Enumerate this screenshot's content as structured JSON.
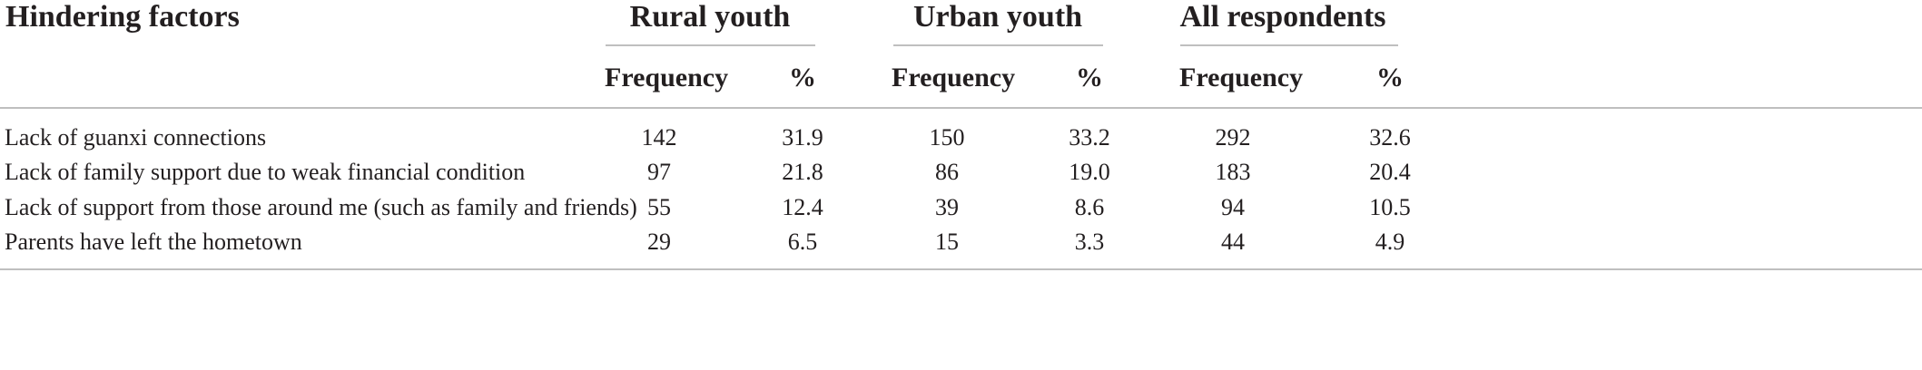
{
  "header": {
    "factor_label": "Hindering factors",
    "groups": [
      "Rural youth",
      "Urban youth",
      "All respondents"
    ],
    "sub_frequency": "Frequency",
    "sub_percent": "%"
  },
  "rows": [
    {
      "factor": "Lack of guanxi connections",
      "rural_freq": "142",
      "rural_pct": "31.9",
      "urban_freq": "150",
      "urban_pct": "33.2",
      "all_freq": "292",
      "all_pct": "32.6"
    },
    {
      "factor": "Lack of family support due to weak financial condition",
      "rural_freq": "97",
      "rural_pct": "21.8",
      "urban_freq": "86",
      "urban_pct": "19.0",
      "all_freq": "183",
      "all_pct": "20.4"
    },
    {
      "factor": "Lack of support from those around me (such as family and friends)",
      "rural_freq": "55",
      "rural_pct": "12.4",
      "urban_freq": "39",
      "urban_pct": "8.6",
      "all_freq": "94",
      "all_pct": "10.5"
    },
    {
      "factor": "Parents have left the hometown",
      "rural_freq": "29",
      "rural_pct": "6.5",
      "urban_freq": "15",
      "urban_pct": "3.3",
      "all_freq": "44",
      "all_pct": "4.9"
    }
  ]
}
